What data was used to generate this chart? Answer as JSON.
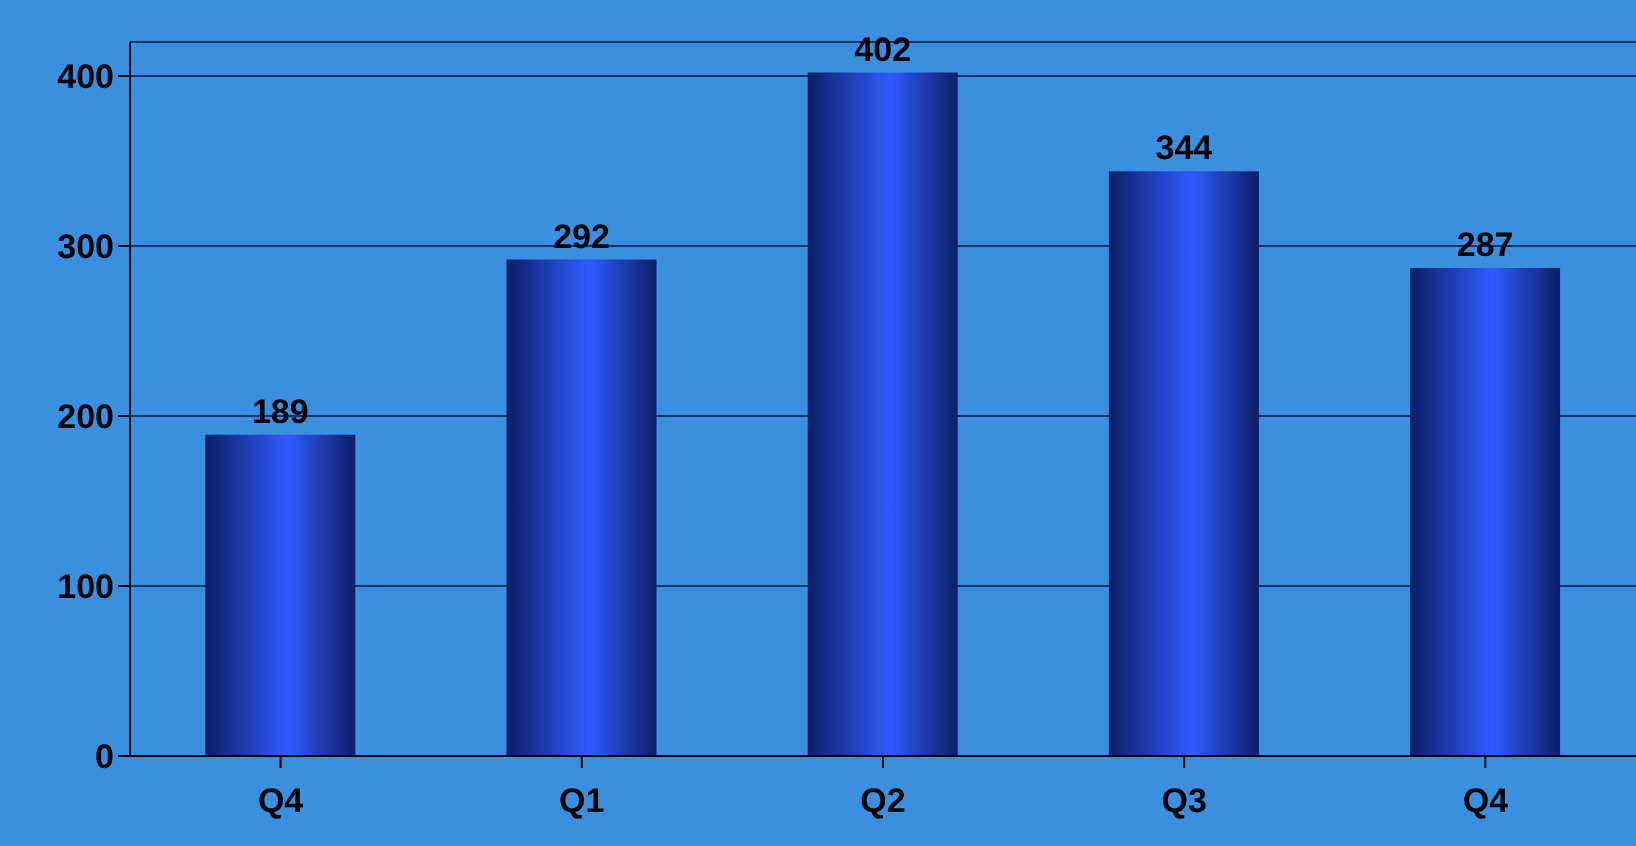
{
  "chart_data": {
    "type": "bar",
    "categories": [
      "Q4",
      "Q1",
      "Q2",
      "Q3",
      "Q4"
    ],
    "values": [
      189,
      292,
      402,
      344,
      287
    ],
    "color": "#2f5cff",
    "ylim": [
      0,
      420
    ],
    "yticks": [
      0,
      100,
      200,
      300,
      400
    ],
    "grid": "y",
    "data_labels": true
  }
}
